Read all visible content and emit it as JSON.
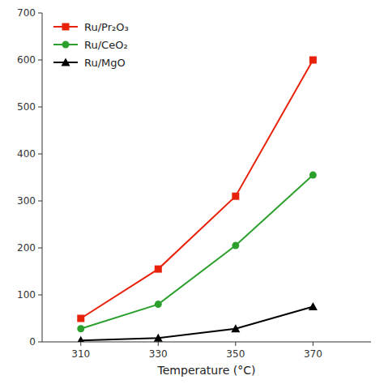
{
  "chart_data": {
    "type": "line",
    "x": [
      310,
      330,
      350,
      370
    ],
    "series": [
      {
        "name": "Ru/Pr₂O₃",
        "color": "#e8220a",
        "marker": "square",
        "values": [
          50,
          155,
          310,
          600
        ]
      },
      {
        "name": "Ru/CeO₂",
        "color": "#2ca02c",
        "marker": "circle",
        "values": [
          28,
          80,
          205,
          355
        ]
      },
      {
        "name": "Ru/MgO",
        "color": "#000000",
        "marker": "triangle",
        "values": [
          3,
          8,
          28,
          75
        ]
      }
    ],
    "xlabel": "Temperature (°C)",
    "xlim": [
      300,
      385
    ],
    "ylim": [
      0,
      700
    ],
    "xticks": [
      310,
      330,
      350,
      370
    ],
    "yticks": [
      0,
      100,
      200,
      300,
      400,
      500,
      600,
      700
    ],
    "grid": false,
    "legend": "upper left"
  }
}
